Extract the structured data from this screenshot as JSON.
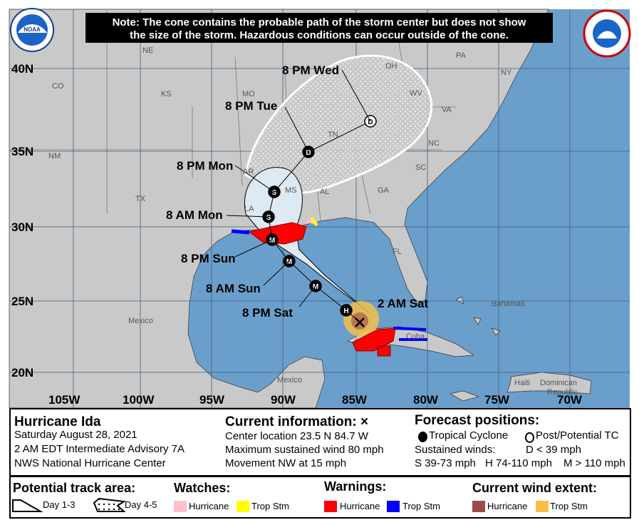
{
  "note": {
    "line1": "Note: The cone contains the probable path of the storm center but does not show",
    "line2": "the size of the storm. Hazardous conditions can occur outside of the cone."
  },
  "logos": {
    "noaa": "NOAA",
    "nws": "NATIONAL WEATHER SERVICE"
  },
  "colors": {
    "ocean": "#6b9fcb",
    "land": "#c9c9c9",
    "cone": "#dde9f3",
    "hurricane_warning": "#ff0000",
    "ts_warning": "#0000ff",
    "hurricane_watch": "#ffc0cb",
    "ts_watch": "#ffff00",
    "hurricane_wind": "#9e4a4a",
    "ts_wind": "#f5c04a"
  },
  "grid": {
    "lat_labels": [
      "40N",
      "35N",
      "30N",
      "25N",
      "20N"
    ],
    "lon_labels": [
      "105W",
      "100W",
      "95W",
      "90W",
      "85W",
      "80W",
      "75W",
      "70W"
    ]
  },
  "places": [
    "NE",
    "CO",
    "KS",
    "MO",
    "NM",
    "TX",
    "AR",
    "MS",
    "LA",
    "AL",
    "TN",
    "GA",
    "SC",
    "NC",
    "VA",
    "WV",
    "OH",
    "PA",
    "NY",
    "FL",
    "Mexico",
    "Mexico",
    "Cuba",
    "Bahamas",
    "Haiti",
    "Dominican",
    "Republic"
  ],
  "track": {
    "current_label": "2 AM Sat",
    "points": [
      {
        "label": "8 PM Sat",
        "symbol": "H"
      },
      {
        "label": "8 AM Sun",
        "symbol": "M"
      },
      {
        "label": "8 PM Sun",
        "symbol": "M"
      },
      {
        "label": "",
        "symbol": "M"
      },
      {
        "label": "8 AM Mon",
        "symbol": "S"
      },
      {
        "label": "8 PM Mon",
        "symbol": "S"
      },
      {
        "label": "8 PM Tue",
        "symbol": "D"
      },
      {
        "label": "8 PM Wed",
        "symbol": "D"
      }
    ]
  },
  "info": {
    "storm_name": "Hurricane Ida",
    "date": "Saturday August 28, 2021",
    "advisory": "2 AM EDT Intermediate Advisory 7A",
    "center": "NWS National Hurricane Center",
    "current_title": "Current information: ×",
    "location": "Center location 23.5 N 84.7 W",
    "max_wind": "Maximum sustained wind 80 mph",
    "movement": "Movement NW at 15 mph",
    "forecast_title": "Forecast positions:",
    "tropical_cyclone": "Tropical Cyclone",
    "post_potential": "Post/Potential TC",
    "sustained": "Sustained winds:",
    "d_def": "D < 39 mph",
    "s_def": "S 39-73 mph",
    "h_def": "H 74-110 mph",
    "m_def": "M > 110 mph"
  },
  "legend": {
    "track_title": "Potential track area:",
    "day13": "Day 1-3",
    "day45": "Day 4-5",
    "watches_title": "Watches:",
    "watch_hurricane": "Hurricane",
    "watch_ts": "Trop Stm",
    "warnings_title": "Warnings:",
    "warn_hurricane": "Hurricane",
    "warn_ts": "Trop Stm",
    "wind_title": "Current wind extent:",
    "wind_hurricane": "Hurricane",
    "wind_ts": "Trop Stm"
  }
}
